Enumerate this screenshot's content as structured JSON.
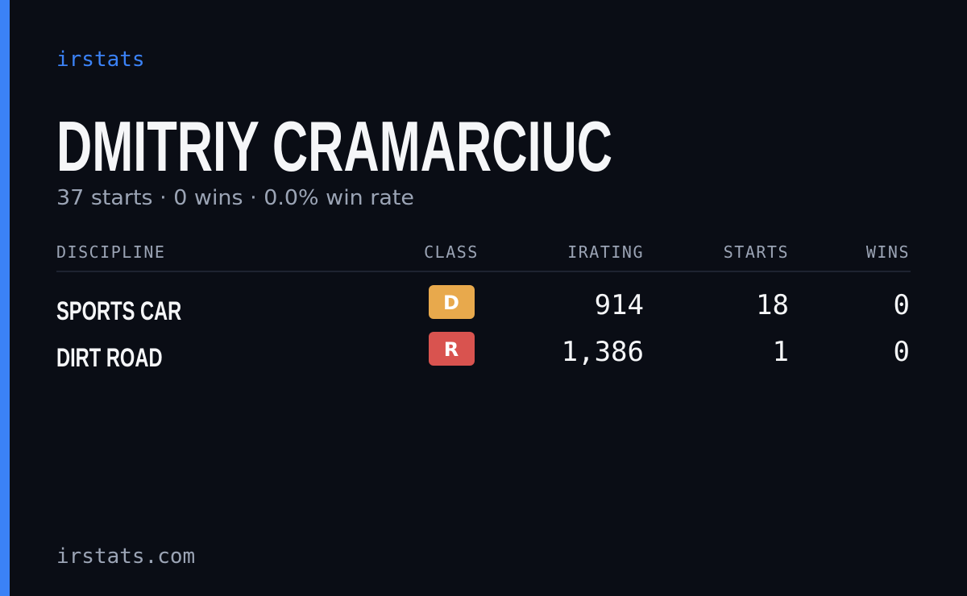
{
  "brand": "irstats",
  "name": "DMITRIY CRAMARCIUC",
  "summary": "37 starts · 0 wins · 0.0% win rate",
  "table": {
    "header": [
      "DISCIPLINE",
      "CLASS",
      "IRATING",
      "STARTS",
      "WINS"
    ],
    "rows": [
      [
        "SPORTS CAR",
        "D",
        "914",
        "18",
        "0"
      ],
      [
        "DIRT ROAD",
        "R",
        "1,386",
        "1",
        "0"
      ]
    ],
    "class_colors": {
      "D": "#e8a94c",
      "R": "#d9534f"
    }
  },
  "footer": "irstats.com"
}
